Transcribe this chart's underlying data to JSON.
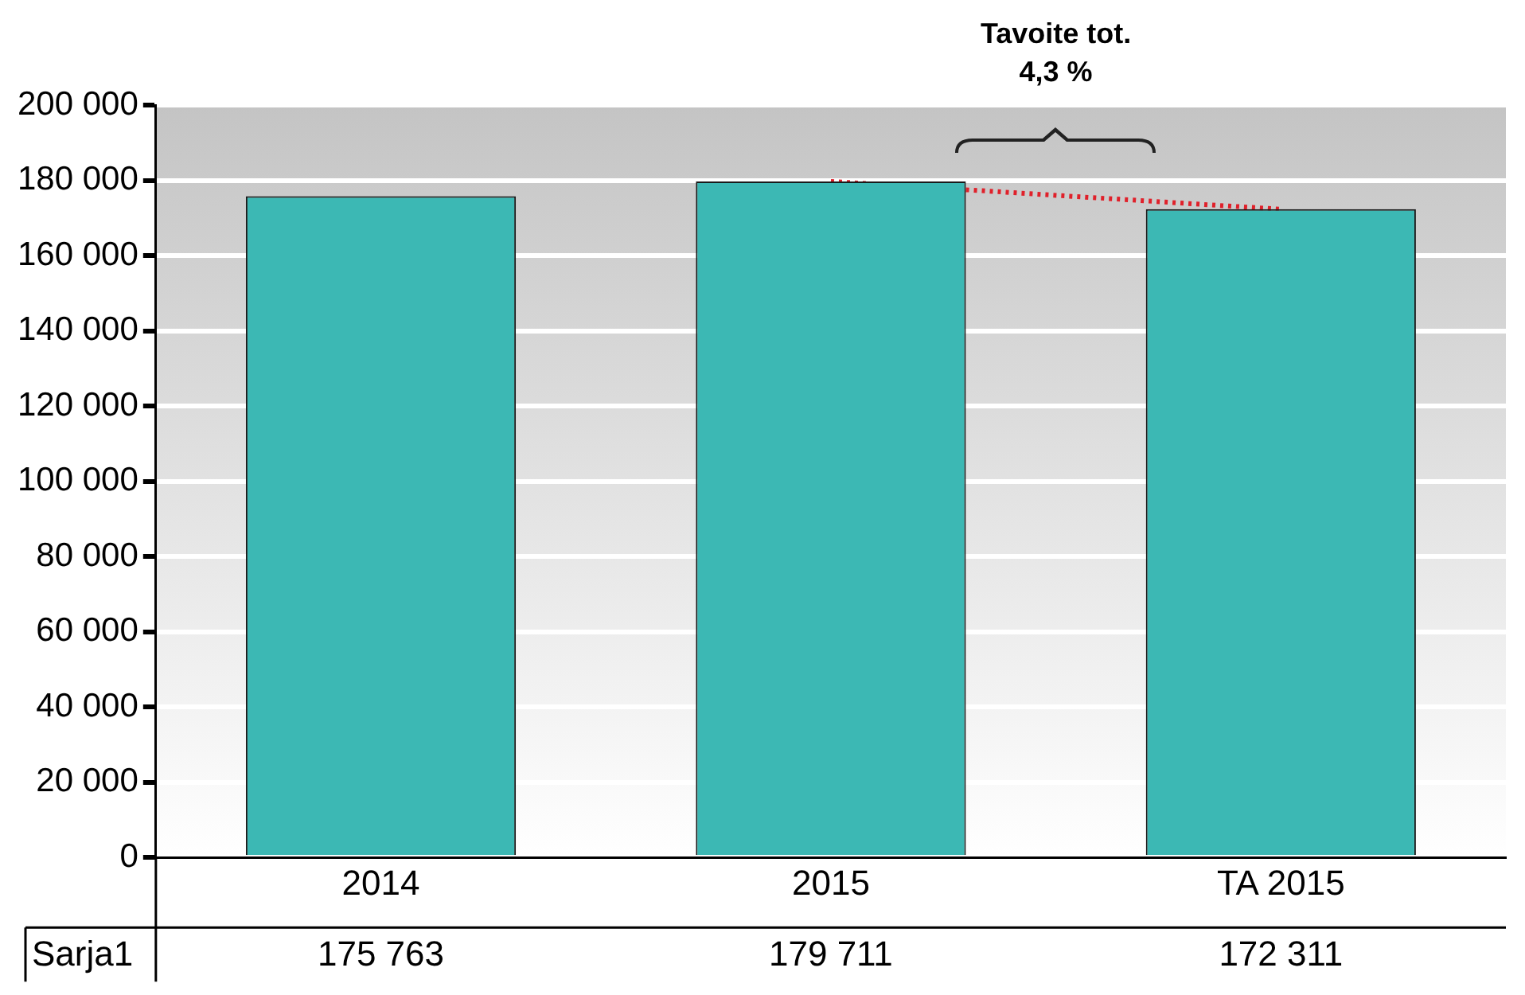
{
  "chart_data": {
    "type": "bar",
    "categories": [
      "2014",
      "2015",
      "TA 2015"
    ],
    "series": [
      {
        "name": "Sarja1",
        "color": "#3cb8b4",
        "values": [
          175763,
          179711,
          172311
        ],
        "value_labels": [
          "175 763",
          "179 711",
          "172 311"
        ]
      },
      {
        "type": "line",
        "color": "#e0202a",
        "line_style": "dotted",
        "values": [
          null,
          179711,
          172311
        ]
      }
    ],
    "ylim": [
      0,
      200000
    ],
    "yticks": [
      {
        "value": 0,
        "label": "0"
      },
      {
        "value": 20000,
        "label": "20 000"
      },
      {
        "value": 40000,
        "label": "40 000"
      },
      {
        "value": 60000,
        "label": "60 000"
      },
      {
        "value": 80000,
        "label": "80 000"
      },
      {
        "value": 100000,
        "label": "100 000"
      },
      {
        "value": 120000,
        "label": "120 000"
      },
      {
        "value": 140000,
        "label": "140 000"
      },
      {
        "value": 160000,
        "label": "160 000"
      },
      {
        "value": 180000,
        "label": "180 000"
      },
      {
        "value": 200000,
        "label": "200 000"
      }
    ],
    "grid": "y",
    "legend": false,
    "annotations": [
      "Tavoite tot.\n4,3 %"
    ]
  }
}
